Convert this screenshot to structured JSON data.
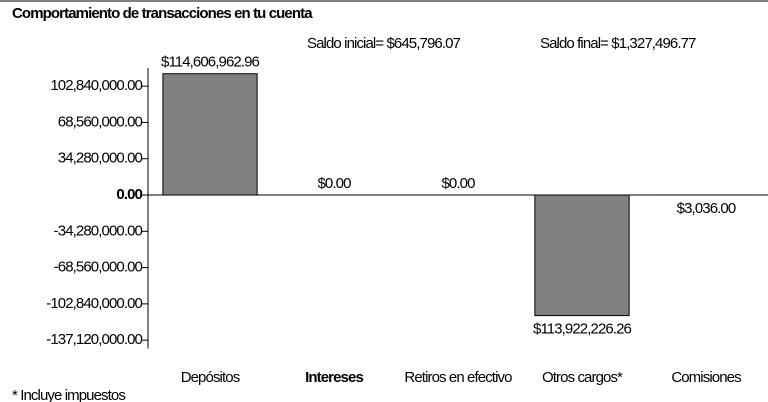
{
  "chart_data": {
    "type": "bar",
    "title": "Comportamiento de transacciones en tu cuenta",
    "annotations": [
      "Saldo inicial= $645,796.07",
      "Saldo final= $1,327,496.77"
    ],
    "footnote": "* Incluye impuestos",
    "categories": [
      "Depósitos",
      "Intereses",
      "Retiros en efectivo",
      "Otros cargos*",
      "Comisiones"
    ],
    "values": [
      114606962.96,
      0,
      0,
      -113922226.26,
      -3036
    ],
    "value_labels": [
      "$114,606,962.96",
      "$0.00",
      "$0.00",
      "$113,922,226.26",
      "$3,036.00"
    ],
    "color": "#808080",
    "ylim": [
      -145000000,
      120000000
    ],
    "yticks": [
      {
        "value": 102840000,
        "label": "102,840,000.00"
      },
      {
        "value": 68560000,
        "label": "68,560,000.00"
      },
      {
        "value": 34280000,
        "label": "34,280,000.00"
      },
      {
        "value": 0,
        "label": "0.00"
      },
      {
        "value": -34280000,
        "label": "-34,280,000.00"
      },
      {
        "value": -68560000,
        "label": "-68,560,000.00"
      },
      {
        "value": -102840000,
        "label": "-102,840,000.00"
      },
      {
        "value": -137120000,
        "label": "-137,120,000.00"
      }
    ]
  }
}
